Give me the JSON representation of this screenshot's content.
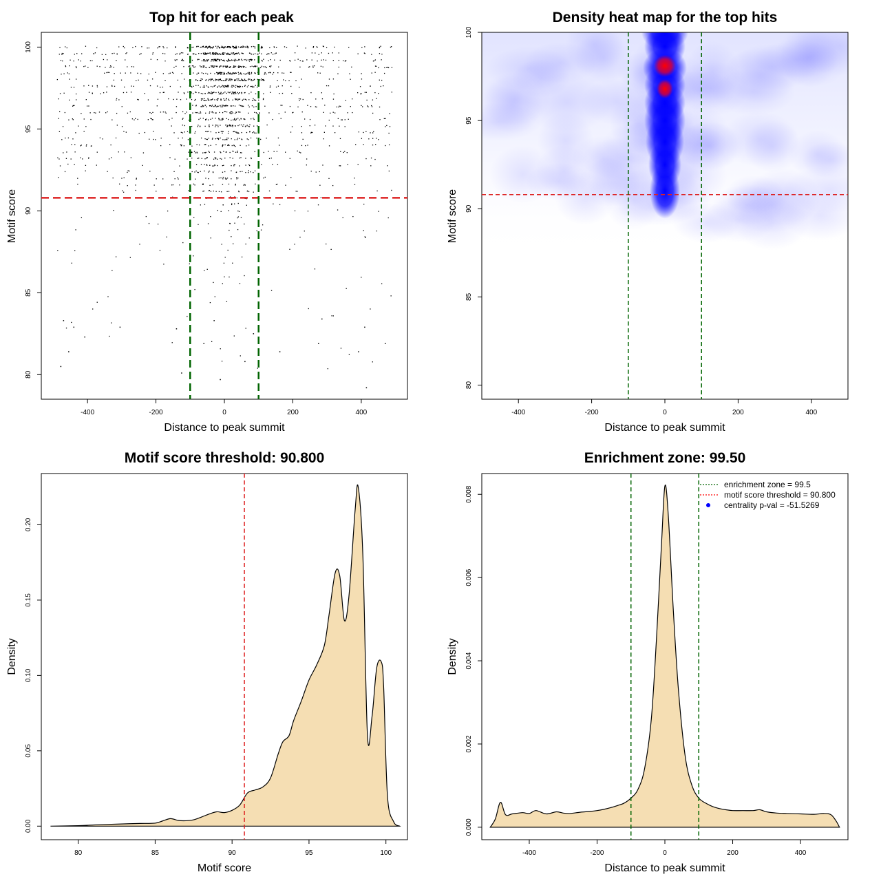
{
  "chart_data": [
    {
      "type": "scatter",
      "title": "Top hit for each peak",
      "xlabel": "Distance to peak summit",
      "ylabel": "Motif score",
      "xlim": [
        -535,
        535
      ],
      "ylim": [
        78.5,
        100.9
      ],
      "xticks": [
        -400,
        -200,
        0,
        200,
        400
      ],
      "yticks": [
        80,
        85,
        90,
        95,
        100
      ],
      "xtick_labels": [
        "-400",
        "-200",
        "0",
        "200",
        "400"
      ],
      "ytick_labels": [
        "80",
        "85",
        "90",
        "95",
        "100"
      ],
      "threshold_line": {
        "axis": "y",
        "value": 90.8,
        "color": "#ff0000"
      },
      "zone_lines": {
        "axis": "x",
        "values": [
          -100,
          100
        ],
        "color": "#006400"
      },
      "point_color": "#000000",
      "sparse_points": [
        {
          "x": -470,
          "y": 83.3
        },
        {
          "x": -478,
          "y": 80.5
        },
        {
          "x": -440,
          "y": 82.9
        },
        {
          "x": -408,
          "y": 82.3
        },
        {
          "x": -455,
          "y": 81.4
        },
        {
          "x": -305,
          "y": 82.9
        },
        {
          "x": -140,
          "y": 82.8
        },
        {
          "x": -125,
          "y": 80.1
        },
        {
          "x": -60,
          "y": 81.9
        },
        {
          "x": -12,
          "y": 79.7
        },
        {
          "x": 60,
          "y": 80.8
        },
        {
          "x": 162,
          "y": 81.4
        },
        {
          "x": 275,
          "y": 81.9
        },
        {
          "x": 392,
          "y": 81.4
        },
        {
          "x": 415,
          "y": 79.2
        },
        {
          "x": 470,
          "y": 81.9
        },
        {
          "x": 410,
          "y": 82.9
        },
        {
          "x": 285,
          "y": 83.4
        },
        {
          "x": 85,
          "y": 82.5
        },
        {
          "x": -30,
          "y": 83.3
        }
      ]
    },
    {
      "type": "heatmap",
      "title": "Density heat map for the top hits",
      "xlabel": "Distance to peak summit",
      "ylabel": "Motif score",
      "xlim": [
        -500,
        500
      ],
      "ylim": [
        79.2,
        100
      ],
      "xticks": [
        -400,
        -200,
        0,
        200,
        400
      ],
      "yticks": [
        80,
        85,
        90,
        95,
        100
      ],
      "xtick_labels": [
        "-400",
        "-200",
        "0",
        "200",
        "400"
      ],
      "ytick_labels": [
        "80",
        "85",
        "90",
        "95",
        "100"
      ],
      "threshold_line": {
        "axis": "y",
        "value": 90.8,
        "color": "#ff0000"
      },
      "zone_lines": {
        "axis": "x",
        "values": [
          -100,
          100
        ],
        "color": "#006400"
      },
      "colors": {
        "low": "#ffffff",
        "mid": "#0000ff",
        "high": "#ff0000"
      }
    },
    {
      "type": "area",
      "title": "Motif score threshold: 90.800",
      "xlabel": "Motif score",
      "ylabel": "Density",
      "xlim": [
        77.6,
        101.4
      ],
      "ylim": [
        -0.009,
        0.234
      ],
      "xticks": [
        80,
        85,
        90,
        95,
        100
      ],
      "yticks": [
        0,
        0.05,
        0.1,
        0.15,
        0.2
      ],
      "xtick_labels": [
        "80",
        "85",
        "90",
        "95",
        "100"
      ],
      "ytick_labels": [
        "0.00",
        "0.05",
        "0.10",
        "0.15",
        "0.20"
      ],
      "threshold_line": {
        "axis": "x",
        "value": 90.8,
        "color": "#ff0000"
      },
      "fill_color": "#f5deb3",
      "x": [
        78.2,
        80,
        81,
        82,
        83,
        84,
        85,
        85.5,
        86,
        86.5,
        87,
        87.5,
        88,
        88.5,
        89,
        89.5,
        90,
        90.5,
        91,
        91.5,
        92,
        92.5,
        93,
        93.3,
        93.7,
        94,
        94.5,
        95,
        95.5,
        96,
        96.3,
        96.7,
        97,
        97.3,
        97.6,
        98,
        98.2,
        98.5,
        98.8,
        99.1,
        99.4,
        99.7,
        99.85,
        100.1,
        100.5,
        100.9
      ],
      "y": [
        0,
        0.0003,
        0.0008,
        0.0012,
        0.0015,
        0.0018,
        0.002,
        0.0035,
        0.005,
        0.0038,
        0.0036,
        0.0042,
        0.006,
        0.008,
        0.0095,
        0.009,
        0.0105,
        0.014,
        0.022,
        0.024,
        0.026,
        0.032,
        0.048,
        0.056,
        0.06,
        0.07,
        0.083,
        0.097,
        0.107,
        0.12,
        0.14,
        0.168,
        0.166,
        0.1365,
        0.153,
        0.21,
        0.225,
        0.18,
        0.06,
        0.073,
        0.105,
        0.109,
        0.093,
        0.02,
        0.003,
        0
      ]
    },
    {
      "type": "area",
      "title": "Enrichment zone: 99.50",
      "xlabel": "Distance to peak summit",
      "ylabel": "Density",
      "xlim": [
        -540,
        540
      ],
      "ylim": [
        -0.0003,
        0.0085
      ],
      "xticks": [
        -400,
        -200,
        0,
        200,
        400
      ],
      "yticks": [
        0,
        0.002,
        0.004,
        0.006,
        0.008
      ],
      "xtick_labels": [
        "-400",
        "-200",
        "0",
        "200",
        "400"
      ],
      "ytick_labels": [
        "0.000",
        "0.002",
        "0.004",
        "0.006",
        "0.008"
      ],
      "zone_lines": {
        "axis": "x",
        "values": [
          -100,
          100
        ],
        "color": "#006400"
      },
      "fill_color": "#f5deb3",
      "x": [
        -515,
        -500,
        -485,
        -470,
        -450,
        -420,
        -400,
        -380,
        -350,
        -320,
        -300,
        -280,
        -250,
        -220,
        -200,
        -180,
        -160,
        -140,
        -120,
        -100,
        -80,
        -60,
        -40,
        -25,
        -10,
        0,
        10,
        25,
        40,
        60,
        80,
        100,
        120,
        140,
        160,
        180,
        200,
        230,
        260,
        280,
        300,
        330,
        360,
        400,
        440,
        470,
        490,
        505,
        515
      ],
      "y": [
        0,
        0.0002,
        0.0006,
        0.0003,
        0.00032,
        0.00035,
        0.00033,
        0.0004,
        0.00032,
        0.00037,
        0.00034,
        0.00033,
        0.00036,
        0.00038,
        0.0004,
        0.00043,
        0.00047,
        0.00052,
        0.00058,
        0.0007,
        0.0009,
        0.0014,
        0.0026,
        0.0045,
        0.0068,
        0.0082,
        0.0075,
        0.0052,
        0.0033,
        0.0017,
        0.001,
        0.0007,
        0.00058,
        0.0005,
        0.00045,
        0.00042,
        0.0004,
        0.0004,
        0.0004,
        0.00042,
        0.00037,
        0.00034,
        0.00033,
        0.00032,
        0.00031,
        0.00033,
        0.0003,
        0.00015,
        0
      ],
      "zone_lines_values_note": "",
      "legend": [
        {
          "label": "enrichment zone = 99.5",
          "color": "#006400",
          "style": "dotted-line"
        },
        {
          "label": "motif score threshold = 90.800",
          "color": "#ff0000",
          "style": "dotted-line"
        },
        {
          "label": "centrality p-val = -51.5269",
          "color": "#0000ff",
          "style": "point"
        }
      ],
      "legend_position": "top-right"
    }
  ]
}
